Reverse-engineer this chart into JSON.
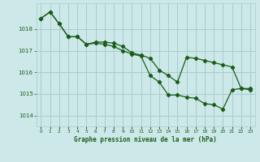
{
  "title": "Graphe pression niveau de la mer (hPa)",
  "background_color": "#cce8e8",
  "grid_color": "#aacccc",
  "line_color": "#1a5c1a",
  "x_labels": [
    "0",
    "1",
    "2",
    "3",
    "4",
    "5",
    "6",
    "7",
    "8",
    "9",
    "10",
    "11",
    "12",
    "13",
    "14",
    "15",
    "16",
    "17",
    "18",
    "19",
    "20",
    "21",
    "22",
    "23"
  ],
  "ylim": [
    1013.5,
    1019.2
  ],
  "yticks": [
    1014,
    1015,
    1016,
    1017,
    1018
  ],
  "series1_x": [
    0,
    1,
    2,
    3,
    4,
    5,
    6,
    7,
    8,
    9,
    10,
    11,
    12,
    13,
    14,
    15,
    16,
    17,
    18,
    19,
    20,
    21,
    22,
    23
  ],
  "series1_y": [
    1018.5,
    1018.8,
    1018.25,
    1017.65,
    1017.65,
    1017.3,
    1017.4,
    1017.4,
    1017.35,
    1017.2,
    1016.9,
    1016.8,
    1016.65,
    1016.1,
    1015.85,
    1015.55,
    1016.7,
    1016.65,
    1016.55,
    1016.45,
    1016.35,
    1016.25,
    1015.25,
    1015.25
  ],
  "series2_x": [
    0,
    1,
    2,
    3,
    4,
    5,
    6,
    7,
    8,
    9,
    10,
    11,
    12,
    13,
    14,
    15,
    16,
    17,
    18,
    19,
    20,
    21,
    22,
    23
  ],
  "series2_y": [
    1018.5,
    1018.8,
    1018.25,
    1017.65,
    1017.65,
    1017.3,
    1017.35,
    1017.3,
    1017.2,
    1017.0,
    1016.85,
    1016.75,
    1015.85,
    1015.55,
    1014.95,
    1014.95,
    1014.85,
    1014.8,
    1014.55,
    1014.5,
    1014.3,
    1015.2,
    1015.25,
    1015.2
  ]
}
